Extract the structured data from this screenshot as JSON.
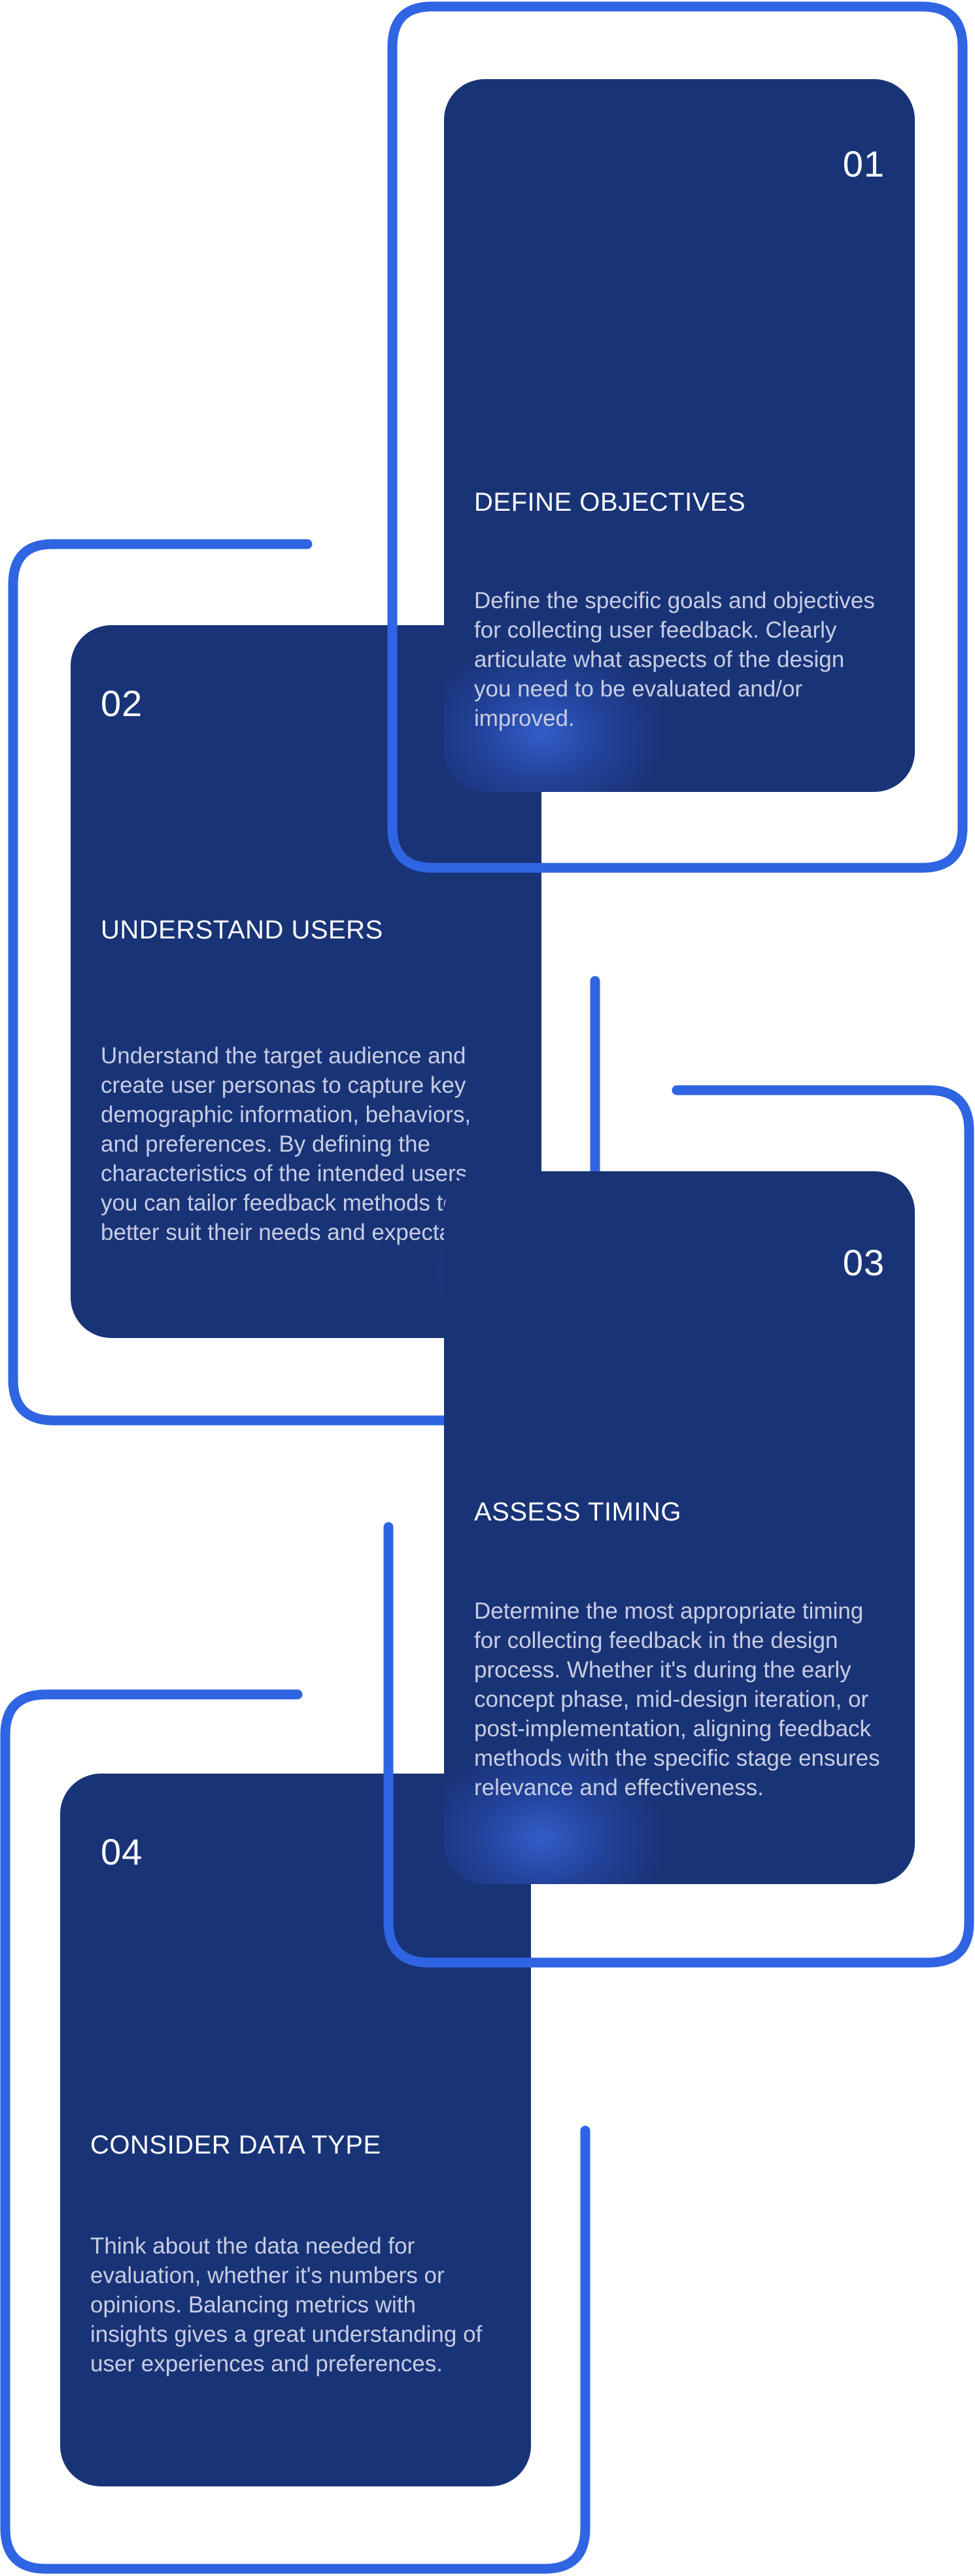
{
  "colors": {
    "card": "#193377",
    "frame": "#2f64e2",
    "text": "#ffffff",
    "desc": "#c8cde3"
  },
  "steps": [
    {
      "number": "01",
      "title": "DEFINE OBJECTIVES",
      "description": "Define the specific goals and objectives for collecting user feedback. Clearly articulate what aspects of the design you need to be evaluated and/or improved."
    },
    {
      "number": "02",
      "title": "UNDERSTAND USERS",
      "description": "Understand the target audience and create user personas to capture key demographic information, behaviors, and preferences. By defining the characteristics of the intended users, you can tailor feedback methods to better suit their needs and expectations."
    },
    {
      "number": "03",
      "title": "ASSESS TIMING",
      "description": "Determine the most appropriate timing for collecting feedback in the design process. Whether it's during the early concept phase, mid-design iteration, or post-implementation, aligning feedback methods with the specific stage ensures relevance and effectiveness."
    },
    {
      "number": "04",
      "title": "CONSIDER DATA TYPE",
      "description": "Think about the data needed for evaluation, whether it's numbers or opinions. Balancing metrics with insights gives a great understanding of user experiences and preferences."
    }
  ]
}
